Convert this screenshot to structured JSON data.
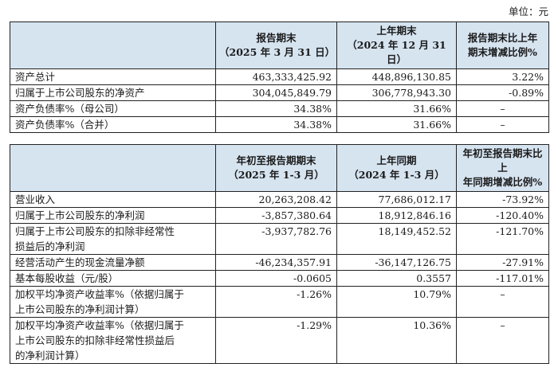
{
  "unit": "单位：元",
  "table1": {
    "headers": [
      "",
      [
        "报告期末",
        "（2025 年 3 月 31 日）"
      ],
      [
        "上年期末",
        "（2024 年 12 月 31 日）"
      ],
      [
        "报告期末比上年",
        "期末增减比例%"
      ]
    ],
    "rows": [
      {
        "label": "资产总计",
        "c1": "463,333,425.92",
        "c2": "448,896,130.85",
        "c3": "3.22%"
      },
      {
        "label": "归属于上市公司股东的净资产",
        "c1": "304,045,849.79",
        "c2": "306,778,943.30",
        "c3": "-0.89%"
      },
      {
        "label": "资产负债率%（母公司）",
        "c1": "34.38%",
        "c2": "31.66%",
        "c3": "–"
      },
      {
        "label": "资产负债率%（合并）",
        "c1": "34.38%",
        "c2": "31.66%",
        "c3": "–"
      }
    ]
  },
  "table2": {
    "headers": [
      "",
      [
        "年初至报告期期末",
        "（2025 年 1-3 月）"
      ],
      [
        "上年同期",
        "（2024 年 1-3 月）"
      ],
      [
        "年初至报告期末比上",
        "年同期增减比例%"
      ]
    ],
    "rows": [
      {
        "label": [
          "营业收入"
        ],
        "c1": "20,263,208.42",
        "c2": "77,686,012.17",
        "c3": "-73.92%"
      },
      {
        "label": [
          "归属于上市公司股东的净利润"
        ],
        "c1": "-3,857,380.64",
        "c2": "18,912,846.16",
        "c3": "-120.40%"
      },
      {
        "label": [
          "归属于上市公司股东的扣除非经常性",
          "损益后的净利润"
        ],
        "c1": "-3,937,782.76",
        "c2": "18,149,452.52",
        "c3": "-121.70%"
      },
      {
        "label": [
          "经营活动产生的现金流量净额"
        ],
        "c1": "-46,234,357.91",
        "c2": "-36,147,126.75",
        "c3": "-27.91%"
      },
      {
        "label": [
          "基本每股收益（元/股）"
        ],
        "c1": "-0.0605",
        "c2": "0.3557",
        "c3": "-117.01%"
      },
      {
        "label": [
          "加权平均净资产收益率%（依据归属于",
          "上市公司股东的净利润计算）"
        ],
        "c1": "-1.26%",
        "c2": "10.79%",
        "c3": "–"
      },
      {
        "label": [
          "加权平均净资产收益率%（依据归属于",
          "上市公司股东的扣除非经常性损益后",
          "的净利润计算）"
        ],
        "c1": "-1.29%",
        "c2": "10.36%",
        "c3": "–"
      }
    ]
  }
}
